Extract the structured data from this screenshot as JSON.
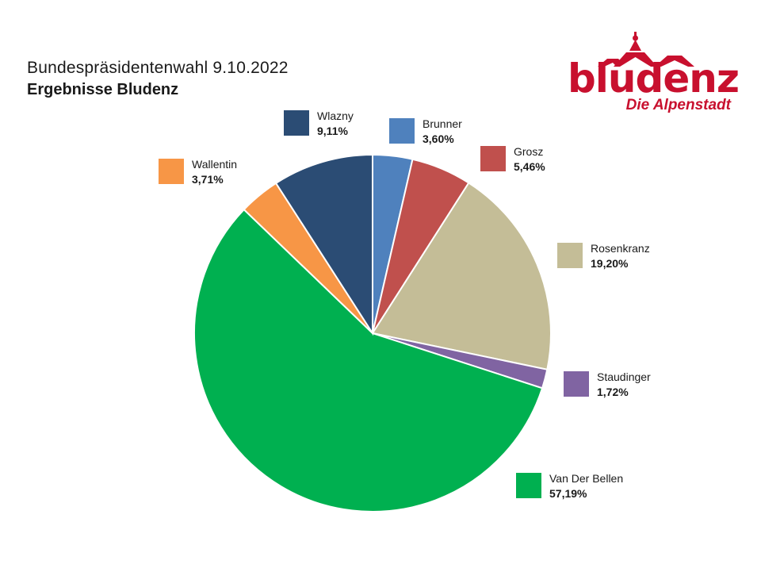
{
  "header": {
    "title": "Bundespräsidentenwahl 9.10.2022",
    "subtitle": "Ergebnisse Bludenz"
  },
  "logo": {
    "wordmark": "bludenz",
    "tagline": "Die Alpenstadt",
    "color": "#c8102e"
  },
  "chart_data": {
    "type": "pie",
    "title": "Bundespräsidentenwahl 9.10.2022",
    "subtitle": "Ergebnisse Bludenz",
    "start": "12 o'clock",
    "direction": "clockwise",
    "slices": [
      {
        "name": "Brunner",
        "label": "3,60%",
        "value": 3.6,
        "color": "#4f81bd"
      },
      {
        "name": "Grosz",
        "label": "5,46%",
        "value": 5.46,
        "color": "#c0504d"
      },
      {
        "name": "Rosenkranz",
        "label": "19,20%",
        "value": 19.2,
        "color": "#c4bd97"
      },
      {
        "name": "Staudinger",
        "label": "1,72%",
        "value": 1.72,
        "color": "#8064a2"
      },
      {
        "name": "Van Der Bellen",
        "label": "57,19%",
        "value": 57.19,
        "color": "#00b050"
      },
      {
        "name": "Wallentin",
        "label": "3,71%",
        "value": 3.71,
        "color": "#f79646"
      },
      {
        "name": "Wlazny",
        "label": "9,11%",
        "value": 9.11,
        "color": "#2b4c74"
      }
    ]
  }
}
